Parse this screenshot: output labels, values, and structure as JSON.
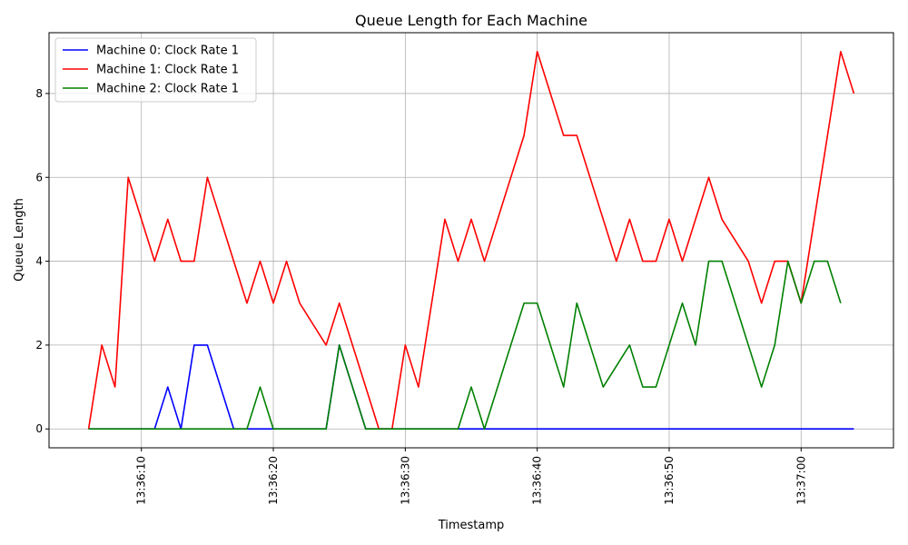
{
  "chart_data": {
    "type": "line",
    "title": "Queue Length for Each Machine",
    "xlabel": "Timestamp",
    "ylabel": "Queue Length",
    "x_axis": {
      "type": "time",
      "start": "13:36:06",
      "end": "13:37:04",
      "range": [
        "13:36:03",
        "13:37:07"
      ],
      "ticks": [
        "13:36:10",
        "13:36:20",
        "13:36:30",
        "13:36:40",
        "13:36:50",
        "13:37:00"
      ]
    },
    "ylim": [
      -0.45,
      9.45
    ],
    "y_ticks": [
      "0",
      "2",
      "4",
      "6",
      "8"
    ],
    "grid": true,
    "legend_position": "top-left",
    "series": [
      {
        "name": "Machine 0: Clock Rate 1",
        "color": "#0000ff",
        "x": [
          "13:36:06",
          "13:36:11",
          "13:36:12",
          "13:36:13",
          "13:36:14",
          "13:36:15",
          "13:36:17",
          "13:36:24",
          "13:36:25",
          "13:36:27",
          "13:37:04"
        ],
        "y": [
          0,
          0,
          1,
          0,
          2,
          2,
          0,
          0,
          2,
          0,
          0
        ]
      },
      {
        "name": "Machine 1: Clock Rate 1",
        "color": "#ff0000",
        "x": [
          "13:36:06",
          "13:36:07",
          "13:36:08",
          "13:36:09",
          "13:36:11",
          "13:36:12",
          "13:36:13",
          "13:36:14",
          "13:36:15",
          "13:36:18",
          "13:36:19",
          "13:36:20",
          "13:36:21",
          "13:36:22",
          "13:36:24",
          "13:36:25",
          "13:36:28",
          "13:36:29",
          "13:36:30",
          "13:36:31",
          "13:36:33",
          "13:36:34",
          "13:36:35",
          "13:36:36",
          "13:36:39",
          "13:36:40",
          "13:36:42",
          "13:36:43",
          "13:36:46",
          "13:36:47",
          "13:36:48",
          "13:36:49",
          "13:36:50",
          "13:36:51",
          "13:36:53",
          "13:36:54",
          "13:36:56",
          "13:36:57",
          "13:36:58",
          "13:36:59",
          "13:37:00",
          "13:37:03",
          "13:37:04"
        ],
        "y": [
          0,
          2,
          1,
          6,
          4,
          5,
          4,
          4,
          6,
          3,
          4,
          3,
          4,
          3,
          2,
          3,
          0,
          0,
          2,
          1,
          5,
          4,
          5,
          4,
          7,
          9,
          7,
          7,
          4,
          5,
          4,
          4,
          5,
          4,
          6,
          5,
          4,
          3,
          4,
          4,
          3,
          9,
          8
        ]
      },
      {
        "name": "Machine 2: Clock Rate 1",
        "color": "#008000",
        "x": [
          "13:36:06",
          "13:36:18",
          "13:36:19",
          "13:36:20",
          "13:36:24",
          "13:36:25",
          "13:36:27",
          "13:36:34",
          "13:36:35",
          "13:36:36",
          "13:36:39",
          "13:36:40",
          "13:36:42",
          "13:36:43",
          "13:36:45",
          "13:36:47",
          "13:36:48",
          "13:36:49",
          "13:36:51",
          "13:36:52",
          "13:36:53",
          "13:36:54",
          "13:36:57",
          "13:36:58",
          "13:36:59",
          "13:37:00",
          "13:37:01",
          "13:37:02",
          "13:37:03"
        ],
        "y": [
          0,
          0,
          1,
          0,
          0,
          2,
          0,
          0,
          1,
          0,
          3,
          3,
          1,
          3,
          1,
          2,
          1,
          1,
          3,
          2,
          4,
          4,
          1,
          2,
          4,
          3,
          4,
          4,
          3
        ]
      }
    ]
  }
}
